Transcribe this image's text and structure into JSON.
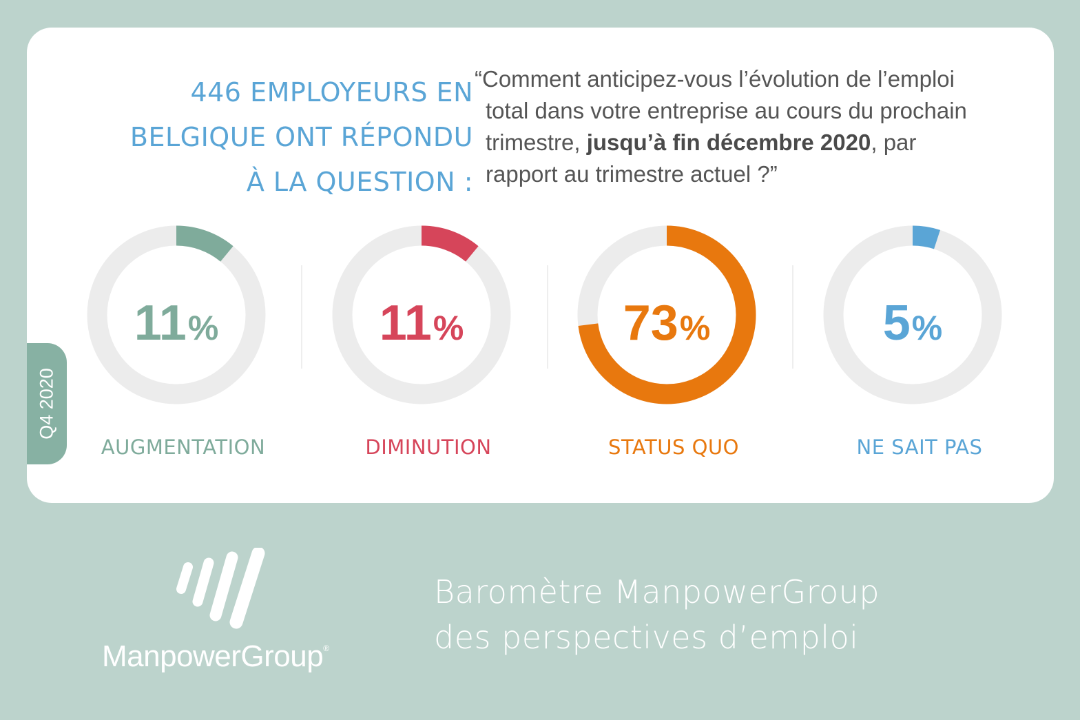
{
  "headline": {
    "lines": [
      "446 EMPLOYEURS EN",
      "BELGIQUE ONT RÉPONDU",
      "À LA QUESTION :"
    ]
  },
  "question": {
    "line1": "“Comment anticipez-vous l’évolution de l’emploi",
    "line2": "total dans votre entreprise au cours du prochain",
    "line3_before": "trimestre, ",
    "line3_bold": "jusqu’à fin décembre 2020",
    "line3_after": ", par",
    "line4": "rapport au trimestre actuel ?”"
  },
  "period_tab": "Q4 2020",
  "chart_data": {
    "type": "pie",
    "title": "",
    "categories": [
      "AUGMENTATION",
      "DIMINUTION",
      "STATUS QUO",
      "NE SAIT PAS"
    ],
    "values": [
      11,
      11,
      73,
      5
    ],
    "value_labels": [
      "11",
      "11",
      "73",
      "5"
    ],
    "unit": "%",
    "colors": [
      "#7fab9b",
      "#d6455a",
      "#e8780e",
      "#5aa5d6"
    ],
    "track_color": "#ececec"
  },
  "footer": {
    "brand": "ManpowerGroup",
    "registered_mark": "®",
    "title_line1": "Baromètre ManpowerGroup",
    "title_line2": "des perspectives d’emploi"
  }
}
